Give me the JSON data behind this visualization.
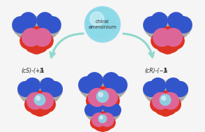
{
  "background_color": "#f5f5f5",
  "central_sphere_color": "#88d8e8",
  "central_sphere_highlight": "#c0eef5",
  "central_text": "chiral\nammonium",
  "central_text_color": "#333333",
  "central_text_fontsize": 5.2,
  "label_left_italic": "(cS)-(+)-",
  "label_left_bold": "1",
  "label_right_italic": "(cR)-(−)-",
  "label_right_bold": "1",
  "label_fontsize": 5.5,
  "arrow_color": "#90d8cc",
  "sphere_guest_color": "#88d8e8",
  "sphere_guest_highlight": "#c0eef5",
  "atom_gray": "#aaaaaa",
  "atom_darkgray": "#666666",
  "atom_red": "#dd3322",
  "atom_blue": "#3355cc",
  "atom_pink": "#dd6699",
  "atom_white": "#eeeeee",
  "fig_width": 2.94,
  "fig_height": 1.89,
  "dpi": 100
}
